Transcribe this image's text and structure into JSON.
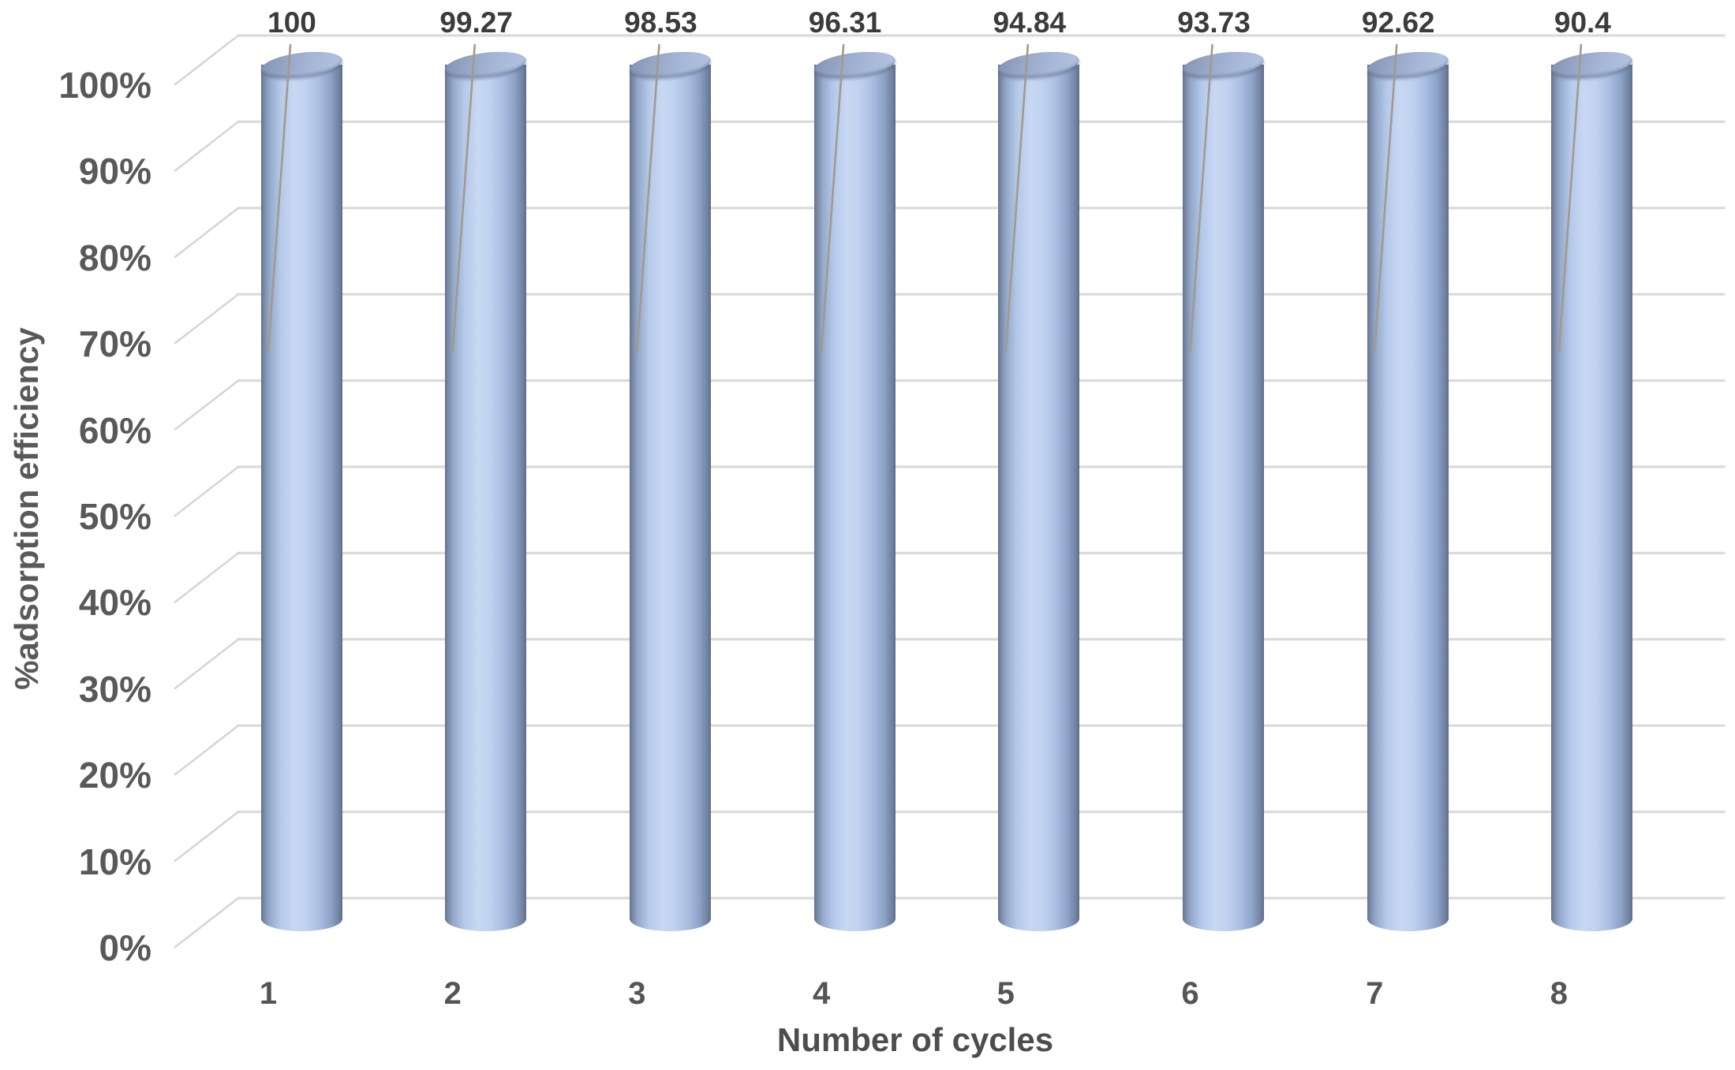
{
  "chart_data": {
    "type": "bar",
    "subtype": "3d-cylinder",
    "title": "",
    "xlabel": "Number of cycles",
    "ylabel": "%adsorption efficiency",
    "categories": [
      "1",
      "2",
      "3",
      "4",
      "5",
      "6",
      "7",
      "8"
    ],
    "values": [
      100,
      99.27,
      98.53,
      96.31,
      94.84,
      93.73,
      92.62,
      90.4
    ],
    "data_labels": [
      "100",
      "99.27",
      "98.53",
      "96.31",
      "94.84",
      "93.73",
      "92.62",
      "90.4"
    ],
    "series_name": "%adsorption efficiency",
    "y_ticks": [
      "0%",
      "10%",
      "20%",
      "30%",
      "40%",
      "50%",
      "60%",
      "70%",
      "80%",
      "90%",
      "100%"
    ],
    "ylim": [
      0,
      1
    ],
    "grid": true,
    "legend_position": "none",
    "colors": {
      "bar_fill_light": "#c7d8f3",
      "bar_fill_mid": "#b5c9ea",
      "bar_edge_dark": "#5f6f8f",
      "bar_top": "#98a9c9",
      "gridline": "#dadada",
      "connector": "#d6d6d6",
      "leader_line": "#a29a8d",
      "tick_text": "#595959",
      "data_label_text": "#3b3b3b",
      "background": "#ffffff"
    }
  }
}
